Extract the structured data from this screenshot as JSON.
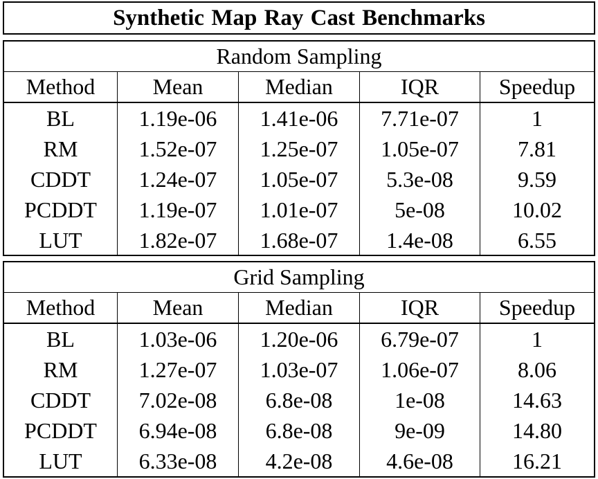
{
  "title": "Synthetic Map Ray Cast Benchmarks",
  "columns": [
    "Method",
    "Mean",
    "Median",
    "IQR",
    "Speedup"
  ],
  "sections": [
    {
      "title": "Random Sampling",
      "rows": [
        [
          "BL",
          "1.19e-06",
          "1.41e-06",
          "7.71e-07",
          "1"
        ],
        [
          "RM",
          "1.52e-07",
          "1.25e-07",
          "1.05e-07",
          "7.81"
        ],
        [
          "CDDT",
          "1.24e-07",
          "1.05e-07",
          "5.3e-08",
          "9.59"
        ],
        [
          "PCDDT",
          "1.19e-07",
          "1.01e-07",
          "5e-08",
          "10.02"
        ],
        [
          "LUT",
          "1.82e-07",
          "1.68e-07",
          "1.4e-08",
          "6.55"
        ]
      ]
    },
    {
      "title": "Grid Sampling",
      "rows": [
        [
          "BL",
          "1.03e-06",
          "1.20e-06",
          "6.79e-07",
          "1"
        ],
        [
          "RM",
          "1.27e-07",
          "1.03e-07",
          "1.06e-07",
          "8.06"
        ],
        [
          "CDDT",
          "7.02e-08",
          "6.8e-08",
          "1e-08",
          "14.63"
        ],
        [
          "PCDDT",
          "6.94e-08",
          "6.8e-08",
          "9e-09",
          "14.80"
        ],
        [
          "LUT",
          "6.33e-08",
          "4.2e-08",
          "4.6e-08",
          "16.21"
        ]
      ]
    }
  ]
}
